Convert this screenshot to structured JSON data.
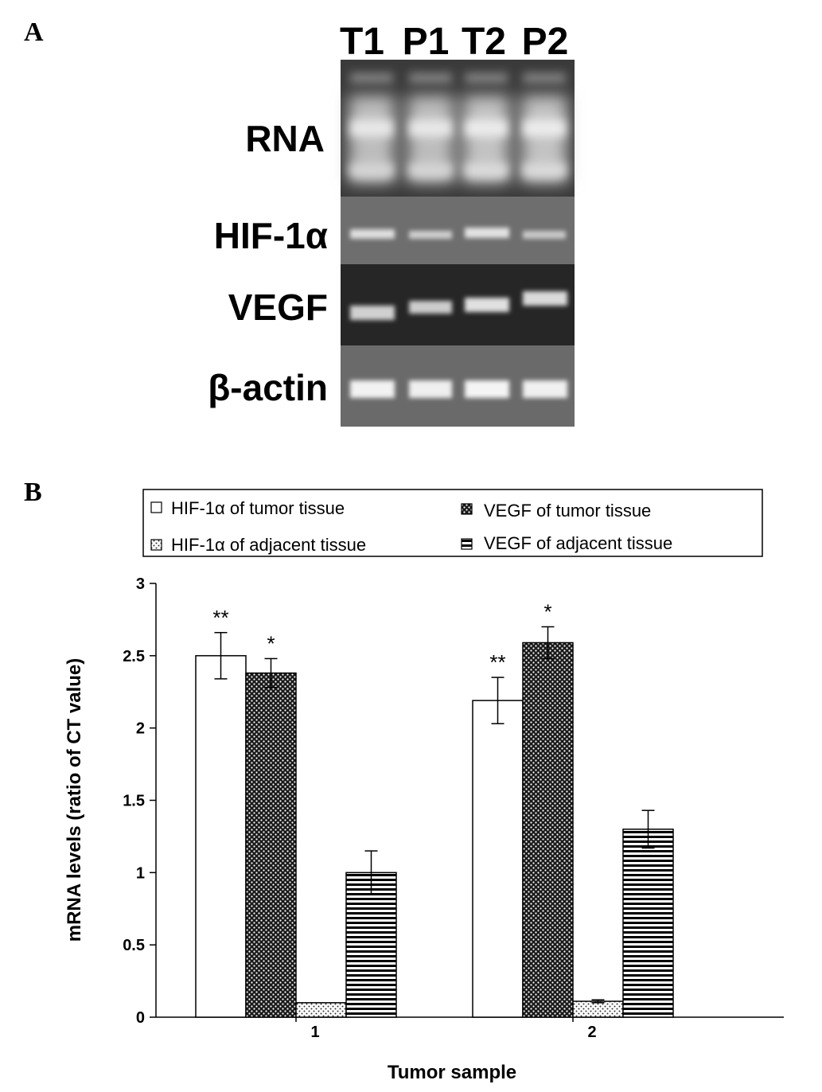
{
  "panel_a_label": "A",
  "panel_b_label": "B",
  "gel": {
    "lanes": [
      "T1",
      "P1",
      "T2",
      "P2"
    ],
    "rows": [
      "RNA",
      "HIF-1α",
      "VEGF",
      "β-actin"
    ]
  },
  "chart_data": {
    "type": "bar",
    "xlabel": "Tumor sample",
    "ylabel": "mRNA levels (ratio of CT value)",
    "ylim": [
      0,
      3
    ],
    "yticks": [
      "0",
      "0.5",
      "1",
      "1.5",
      "2",
      "2.5",
      "3"
    ],
    "categories": [
      "1",
      "2"
    ],
    "series": [
      {
        "name": "HIF-1α of tumor tissue",
        "values": [
          2.5,
          2.19
        ],
        "errors": [
          0.16,
          0.16
        ],
        "pattern": "white",
        "stars": [
          "**",
          "**"
        ]
      },
      {
        "name": "VEGF of tumor tissue",
        "values": [
          2.38,
          2.59
        ],
        "errors": [
          0.1,
          0.11
        ],
        "pattern": "dense-dots",
        "stars": [
          "*",
          "*"
        ]
      },
      {
        "name": "HIF-1α of adjacent tissue",
        "values": [
          0.1,
          0.11
        ],
        "errors": [
          0,
          0.01
        ],
        "pattern": "light-dots",
        "stars": [
          "",
          ""
        ]
      },
      {
        "name": "VEGF of adjacent tissue",
        "values": [
          1.0,
          1.3
        ],
        "errors": [
          0.15,
          0.13
        ],
        "pattern": "horizontal-lines",
        "stars": [
          "",
          ""
        ]
      }
    ],
    "legend_position": "top"
  }
}
